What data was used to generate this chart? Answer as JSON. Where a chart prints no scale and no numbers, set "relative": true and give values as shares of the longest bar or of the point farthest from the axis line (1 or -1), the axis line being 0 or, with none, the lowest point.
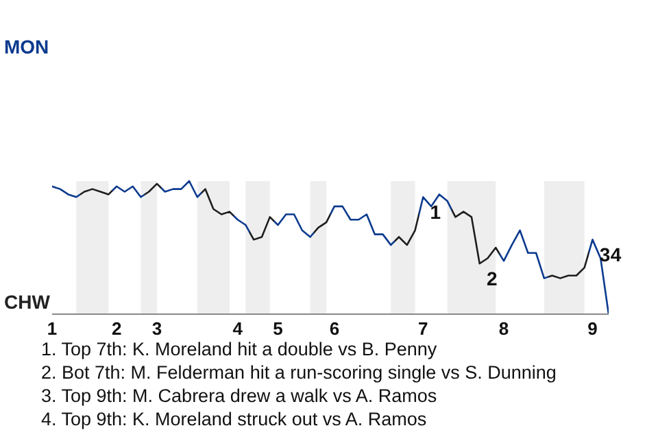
{
  "chart_data": {
    "type": "line",
    "relative": true,
    "categories": [
      "1",
      null,
      null,
      null,
      null,
      null,
      null,
      null,
      "2",
      null,
      null,
      null,
      null,
      "3",
      null,
      null,
      null,
      null,
      null,
      null,
      null,
      null,
      null,
      "4",
      null,
      null,
      null,
      null,
      "5",
      null,
      null,
      null,
      null,
      null,
      null,
      "6",
      null,
      null,
      null,
      null,
      null,
      null,
      null,
      null,
      null,
      null,
      "7",
      null,
      null,
      null,
      null,
      null,
      null,
      null,
      null,
      null,
      "8",
      null,
      null,
      null,
      null,
      null,
      null,
      null,
      null,
      null,
      null,
      "9",
      null,
      null
    ],
    "series": [
      {
        "color": "#0b3a8e",
        "values": [
          0.96,
          0.94,
          0.9,
          0.88,
          0.92,
          0.94,
          0.92,
          0.9,
          0.96,
          0.92,
          0.96,
          0.88,
          0.92,
          0.98,
          0.92,
          0.94,
          0.94,
          1,
          0.88,
          0.94,
          0.79,
          0.75,
          0.77,
          0.71,
          0.67,
          0.56,
          0.58,
          0.73,
          0.67,
          0.75,
          0.75,
          0.63,
          0.58,
          0.65,
          0.69,
          0.81,
          0.81,
          0.71,
          0.71,
          0.75,
          0.6,
          0.6,
          0.52,
          0.58,
          0.52,
          0.63,
          0.88,
          0.81,
          0.9,
          0.85,
          0.73,
          0.77,
          0.73,
          0.38,
          0.42,
          0.5,
          0.4,
          0.52,
          0.63,
          0.46,
          0.46,
          0.27,
          0.29,
          0.27,
          0.29,
          0.29,
          0.35,
          0.56,
          0.42,
          0
        ],
        "colors": [
          "#0b3a8e",
          "#0b3a8e",
          "#0b3a8e",
          "#0b3a8e",
          "#1e1e1e",
          "#1e1e1e",
          "#1e1e1e",
          "#1e1e1e",
          "#0b3a8e",
          "#0b3a8e",
          "#0b3a8e",
          "#0b3a8e",
          "#1e1e1e",
          "#1e1e1e",
          "#0b3a8e",
          "#0b3a8e",
          "#0b3a8e",
          "#0b3a8e",
          "#0b3a8e",
          "#1e1e1e",
          "#1e1e1e",
          "#1e1e1e",
          "#1e1e1e",
          "#0b3a8e",
          "#0b3a8e",
          "#1e1e1e",
          "#1e1e1e",
          "#1e1e1e",
          "#0b3a8e",
          "#0b3a8e",
          "#0b3a8e",
          "#0b3a8e",
          "#0b3a8e",
          "#1e1e1e",
          "#1e1e1e",
          "#0b3a8e",
          "#0b3a8e",
          "#0b3a8e",
          "#0b3a8e",
          "#0b3a8e",
          "#0b3a8e",
          "#0b3a8e",
          "#0b3a8e",
          "#1e1e1e",
          "#1e1e1e",
          "#1e1e1e",
          "#0b3a8e",
          "#0b3a8e",
          "#0b3a8e",
          "#0b3a8e",
          "#1e1e1e",
          "#1e1e1e",
          "#1e1e1e",
          "#1e1e1e",
          "#1e1e1e",
          "#1e1e1e",
          "#0b3a8e",
          "#0b3a8e",
          "#0b3a8e",
          "#0b3a8e",
          "#0b3a8e",
          "#0b3a8e",
          "#1e1e1e",
          "#1e1e1e",
          "#1e1e1e",
          "#1e1e1e",
          "#1e1e1e",
          "#0b3a8e",
          "#0b3a8e",
          "#0b3a8e"
        ]
      }
    ],
    "annotations": [
      "MON",
      "CHW",
      {
        "text": "1",
        "x": "7",
        "y": 0.88
      },
      {
        "text": "2",
        "y": 0.38
      },
      {
        "text": "3",
        "x": "9",
        "y": 0.56
      },
      {
        "text": "4",
        "x": "9",
        "y": 0.56
      },
      "1. Top 7th: K. Moreland hit a double vs B. Penny",
      "2. Bot 7th: M. Felderman hit a run-scoring single vs S. Dunning",
      "3. Top 9th: M. Cabrera drew a walk vs A. Ramos",
      "4. Top 9th: K. Moreland struck out vs A. Ramos"
    ]
  }
}
